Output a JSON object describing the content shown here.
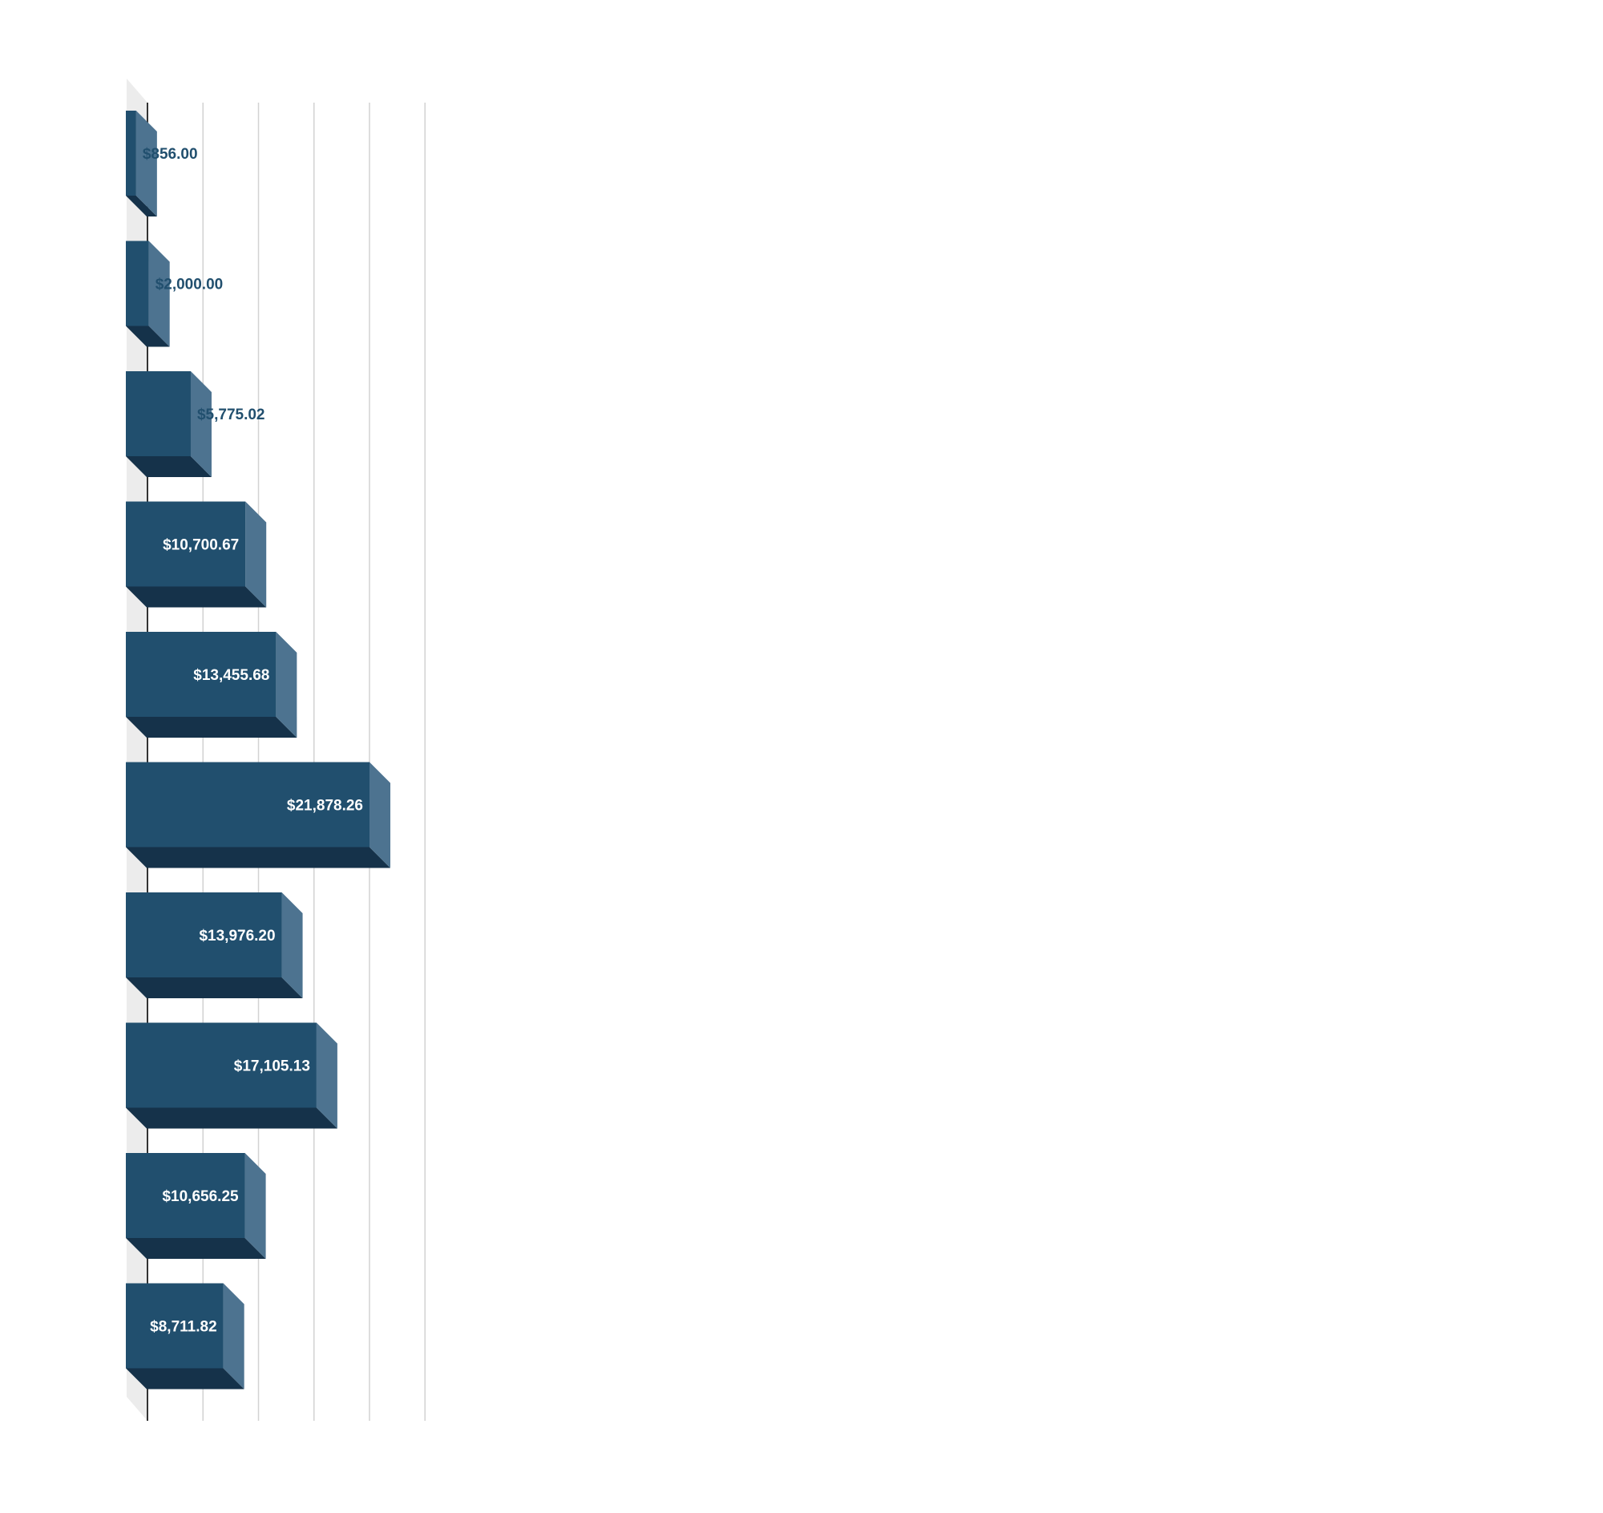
{
  "chart_data": {
    "type": "bar",
    "orientation": "horizontal",
    "style": "3d",
    "title": "",
    "xlabel": "",
    "ylabel": "",
    "xlim": [
      0,
      25000
    ],
    "grid": true,
    "legend": "none",
    "categories": [
      "",
      "",
      "",
      "",
      "",
      "",
      "",
      "",
      "",
      ""
    ],
    "series": [
      {
        "values": [
          856.0,
          2000.0,
          5775.02,
          10700.67,
          13455.68,
          21878.26,
          13976.2,
          17105.13,
          10656.25,
          8711.82
        ],
        "labels": [
          "$856.00",
          "$2,000.00",
          "$5,775.02",
          "$10,700.67",
          "$13,455.68",
          "$21,878.26",
          "$13,976.20",
          "$17,105.13",
          "$10,656.25",
          "$8,711.82"
        ]
      }
    ]
  },
  "colors": {
    "bar_front": "#214f6e",
    "bar_side": "#4d7390",
    "bar_bottom": "#15324a",
    "wall": "#ececec",
    "gridline": "#d2d2d2",
    "axis": "#333333",
    "label_inside": "#ffffff",
    "label_outside": "#214f6e"
  }
}
